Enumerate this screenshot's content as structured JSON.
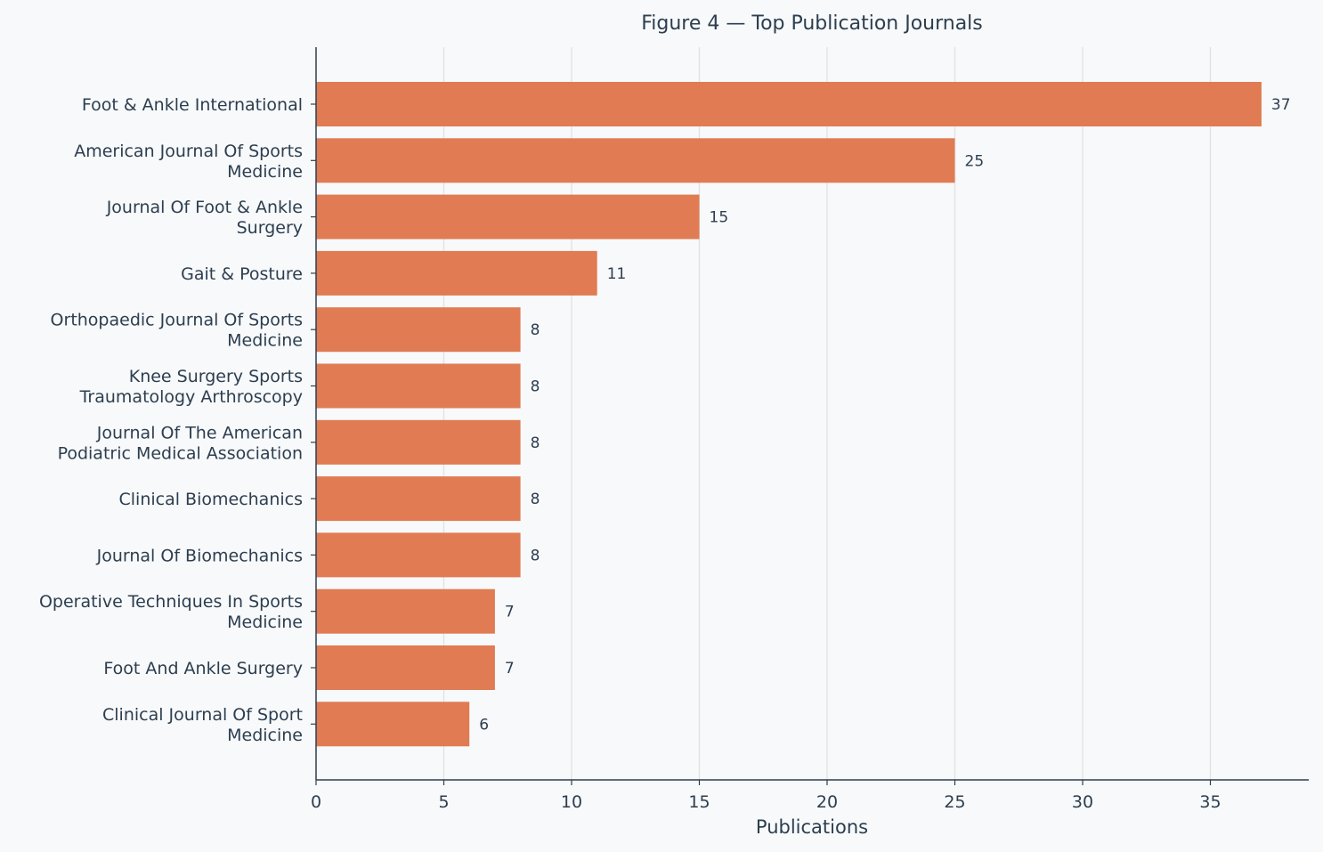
{
  "chart_data": {
    "type": "bar",
    "orientation": "horizontal",
    "title": "Figure 4 — Top Publication Journals",
    "xlabel": "Publications",
    "ylabel": "",
    "xlim": [
      0,
      38.85
    ],
    "xticks": [
      0,
      5,
      10,
      15,
      20,
      25,
      30,
      35
    ],
    "grid": "vertical",
    "bar_color": "#e07b53",
    "text_color": "#2c3e50",
    "background": "#f8f9fa",
    "categories": [
      [
        "Foot & Ankle International"
      ],
      [
        "American Journal Of Sports",
        "Medicine"
      ],
      [
        "Journal Of Foot & Ankle",
        "Surgery"
      ],
      [
        "Gait & Posture"
      ],
      [
        "Orthopaedic Journal Of Sports",
        "Medicine"
      ],
      [
        "Knee Surgery Sports",
        "Traumatology Arthroscopy"
      ],
      [
        "Journal Of The American",
        "Podiatric Medical Association"
      ],
      [
        "Clinical Biomechanics"
      ],
      [
        "Journal Of Biomechanics"
      ],
      [
        "Operative Techniques In Sports",
        "Medicine"
      ],
      [
        "Foot And Ankle Surgery"
      ],
      [
        "Clinical Journal Of Sport",
        "Medicine"
      ]
    ],
    "values": [
      37,
      25,
      15,
      11,
      8,
      8,
      8,
      8,
      8,
      7,
      7,
      6
    ]
  }
}
